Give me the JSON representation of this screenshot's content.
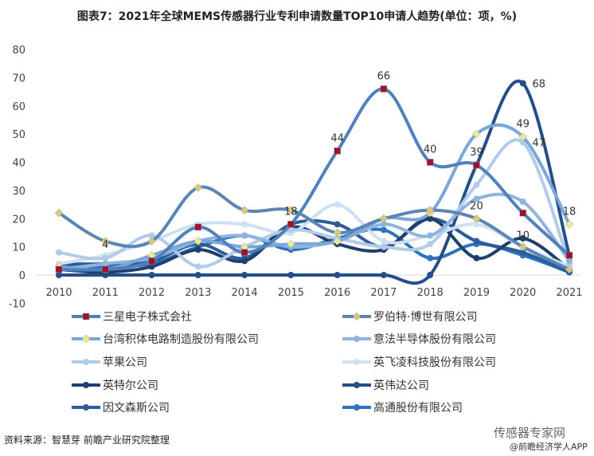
{
  "chart_data": {
    "type": "line",
    "title": "图表7：2021年全球MEMS传感器行业专利申请数量TOP10申请人趋势(单位：项，%)",
    "xlabel": "",
    "ylabel": "",
    "ylim": [
      -10,
      80
    ],
    "yticks": [
      "-10",
      "0",
      "10",
      "20",
      "30",
      "40",
      "50",
      "60",
      "70",
      "80"
    ],
    "x": [
      "2010",
      "2011",
      "2012",
      "2013",
      "2014",
      "2015",
      "2016",
      "2017",
      "2018",
      "2019",
      "2020",
      "2021"
    ],
    "grid": false,
    "legend_position": "bottom",
    "series": [
      {
        "name": "三星电子株式会社",
        "color": "#4f81bd",
        "marker": "square",
        "marker_color": "#a0112b",
        "values": [
          2,
          2,
          5,
          17,
          8,
          18,
          44,
          66,
          40,
          39,
          22,
          7
        ]
      },
      {
        "name": "罗伯特·博世有限公司",
        "color": "#5a86b4",
        "marker": "diamond",
        "marker_color": "#d8c87e",
        "values": [
          22,
          12,
          12,
          31,
          23,
          23,
          15,
          20,
          23,
          20,
          10,
          2
        ]
      },
      {
        "name": "台湾积体电路制造股份有限公司",
        "color": "#7aa6d8",
        "marker": "diamond",
        "marker_color": "#e8ee90",
        "values": [
          3,
          2,
          7,
          12,
          10,
          11,
          12,
          20,
          22,
          50,
          49,
          18
        ]
      },
      {
        "name": "意法半导体股份有限公司",
        "color": "#8fb4de",
        "marker": "circle",
        "marker_color": "#8fb4de",
        "values": [
          2,
          4,
          6,
          12,
          14,
          10,
          12,
          18,
          14,
          27,
          26,
          5
        ]
      },
      {
        "name": "苹果公司",
        "color": "#b3cbea",
        "marker": "circle",
        "marker_color": "#b3cbea",
        "values": [
          8,
          6,
          14,
          3,
          10,
          16,
          13,
          10,
          11,
          32,
          47,
          4
        ]
      },
      {
        "name": "英飞凌科技股份有限公司",
        "color": "#cfe0f3",
        "marker": "circle",
        "marker_color": "#cfe0f3",
        "values": [
          4,
          7,
          12,
          18,
          18,
          15,
          25,
          12,
          14,
          18,
          10,
          3
        ]
      },
      {
        "name": "英特尔公司",
        "color": "#1f3f6e",
        "marker": "circle",
        "marker_color": "#1f3f6e",
        "values": [
          2,
          1,
          3,
          9,
          5,
          17,
          11,
          9,
          20,
          6,
          13,
          2
        ]
      },
      {
        "name": "英伟达公司",
        "color": "#234e8a",
        "marker": "circle",
        "marker_color": "#234e8a",
        "values": [
          0,
          0,
          0,
          0,
          0,
          0,
          0,
          0,
          0,
          39,
          68,
          7
        ]
      },
      {
        "name": "因文森斯公司",
        "color": "#2a5d9a",
        "marker": "circle",
        "marker_color": "#2a5d9a",
        "values": [
          4,
          4,
          5,
          11,
          6,
          18,
          18,
          10,
          20,
          12,
          8,
          1
        ]
      },
      {
        "name": "高通股份有限公司",
        "color": "#2f73bf",
        "marker": "circle",
        "marker_color": "#2f73bf",
        "values": [
          3,
          3,
          4,
          10,
          14,
          9,
          13,
          16,
          6,
          11,
          7,
          1
        ]
      }
    ],
    "data_labels": [
      {
        "text": "4",
        "x": "2011",
        "y": 4
      },
      {
        "text": "18",
        "x": "2015",
        "y": 18
      },
      {
        "text": "44",
        "x": "2016",
        "y": 44
      },
      {
        "text": "66",
        "x": "2017",
        "y": 66
      },
      {
        "text": "40",
        "x": "2018",
        "y": 40
      },
      {
        "text": "39",
        "x": "2019",
        "y": 39
      },
      {
        "text": "20",
        "x": "2019",
        "y": 20
      },
      {
        "text": "68",
        "x": "2020",
        "y": 68
      },
      {
        "text": "49",
        "x": "2020",
        "y": 49
      },
      {
        "text": "47",
        "x": "2020",
        "y": 47
      },
      {
        "text": "10",
        "x": "2020",
        "y": 10
      },
      {
        "text": "18",
        "x": "2021",
        "y": 18
      }
    ]
  },
  "source": "资料来源：智慧芽 前瞻产业研究院整理",
  "watermark": {
    "main": "传感器专家网",
    "sub": "@前瞻经济学人APP"
  }
}
